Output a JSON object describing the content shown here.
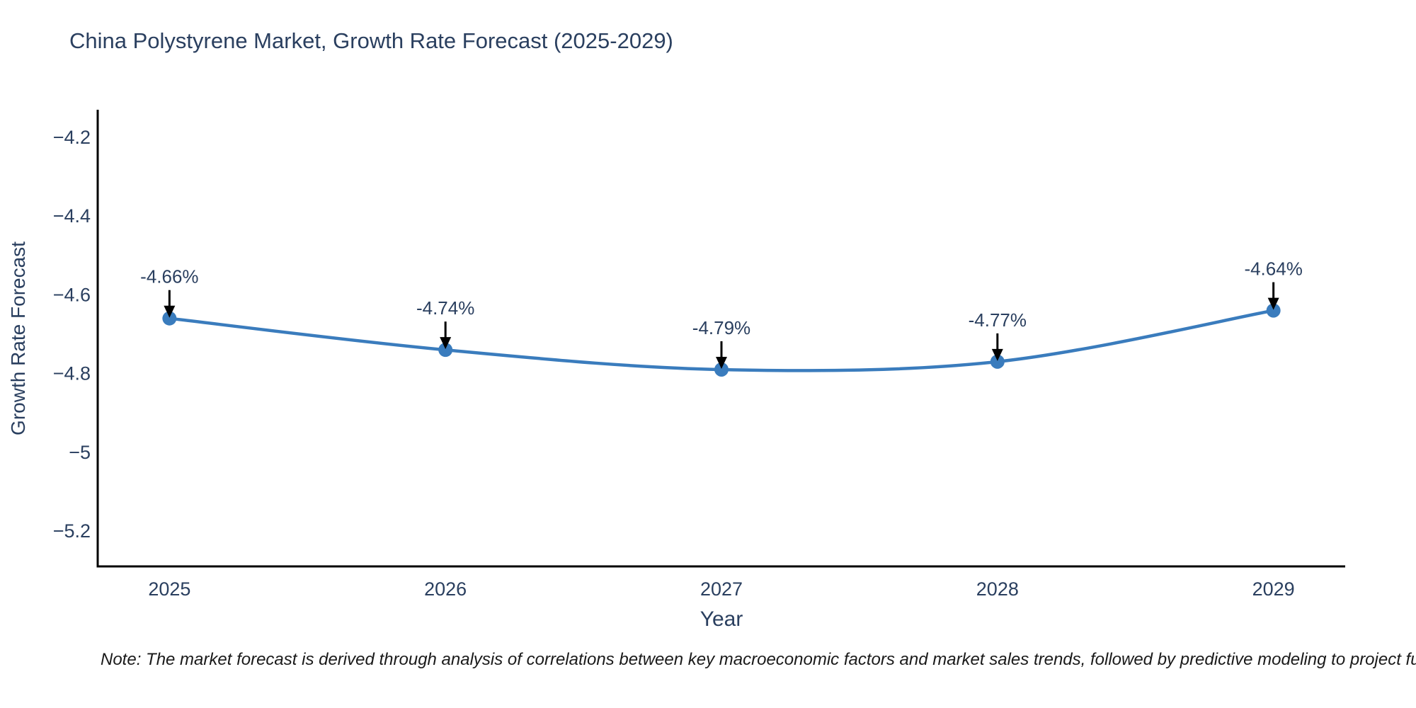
{
  "title": "China Polystyrene Market, Growth Rate Forecast (2025-2029)",
  "note": "Note: The market forecast is derived through analysis of correlations between key macroeconomic factors and market sales trends, followed by predictive modeling to project future sales.",
  "chart_data": {
    "type": "line",
    "title": "China Polystyrene Market, Growth Rate Forecast (2025-2029)",
    "xlabel": "Year",
    "ylabel": "Growth Rate Forecast",
    "x": [
      2025,
      2026,
      2027,
      2028,
      2029
    ],
    "values": [
      -4.66,
      -4.74,
      -4.79,
      -4.77,
      -4.64
    ],
    "point_labels": [
      "-4.66%",
      "-4.74%",
      "-4.79%",
      "-4.77%",
      "-4.64%"
    ],
    "x_tick_labels": [
      "2025",
      "2026",
      "2027",
      "2028",
      "2029"
    ],
    "x_tick_values": [
      2025,
      2026,
      2027,
      2028,
      2029
    ],
    "y_tick_labels": [
      "−4.2",
      "−4.4",
      "−4.6",
      "−4.8",
      "−5",
      "−5.2"
    ],
    "y_tick_values": [
      -4.2,
      -4.4,
      -4.6,
      -4.8,
      -5.0,
      -5.2
    ],
    "xlim": [
      2024.74,
      2029.26
    ],
    "ylim": [
      -5.29,
      -4.13
    ],
    "line_shape": "spline",
    "grid": false,
    "legend_position": "none",
    "colors": {
      "line": "#3a7cbd",
      "marker": "#3a7cbd",
      "axis": "#000000",
      "tick_text": "#2a3f5f",
      "annotation_text": "#2a3f5f",
      "annotation_arrow": "#000000",
      "background": "#ffffff"
    }
  }
}
